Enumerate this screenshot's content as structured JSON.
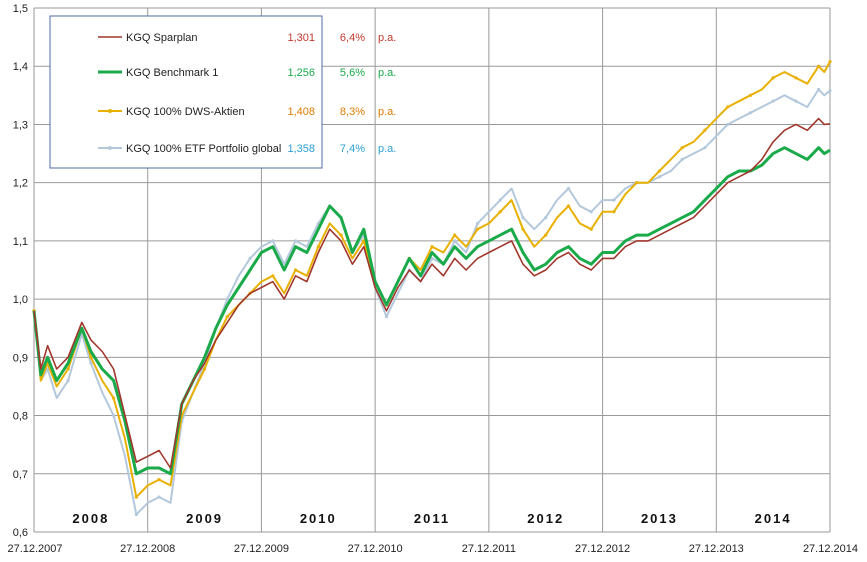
{
  "chart_data": {
    "type": "line",
    "title": "",
    "xlabel": "",
    "ylabel": "",
    "ylim": [
      0.6,
      1.5
    ],
    "y_ticks": [
      "0,6",
      "0,7",
      "0,8",
      "0,9",
      "1,0",
      "1,1",
      "1,2",
      "1,3",
      "1,4",
      "1,5"
    ],
    "x_ticks": [
      "27.12.2007",
      "27.12.2008",
      "27.12.2009",
      "27.12.2010",
      "27.12.2011",
      "27.12.2012",
      "27.12.2013",
      "27.12.2014"
    ],
    "year_labels": [
      "2008",
      "2009",
      "2010",
      "2011",
      "2012",
      "2013",
      "2014"
    ],
    "x": [
      0,
      0.06,
      0.12,
      0.2,
      0.3,
      0.42,
      0.5,
      0.6,
      0.7,
      0.8,
      0.9,
      1.0,
      1.1,
      1.2,
      1.3,
      1.4,
      1.5,
      1.6,
      1.7,
      1.8,
      1.9,
      2.0,
      2.1,
      2.2,
      2.3,
      2.4,
      2.5,
      2.6,
      2.7,
      2.8,
      2.9,
      3.0,
      3.1,
      3.2,
      3.3,
      3.4,
      3.5,
      3.6,
      3.7,
      3.8,
      3.9,
      4.0,
      4.1,
      4.2,
      4.3,
      4.4,
      4.5,
      4.6,
      4.7,
      4.8,
      4.9,
      5.0,
      5.1,
      5.2,
      5.3,
      5.4,
      5.5,
      5.6,
      5.7,
      5.8,
      5.9,
      6.0,
      6.1,
      6.2,
      6.3,
      6.4,
      6.5,
      6.6,
      6.7,
      6.8,
      6.9,
      6.95,
      7.0
    ],
    "series": [
      {
        "name": "KGQ Sparplan",
        "color": "#a0372d",
        "stroke_width": 1.6,
        "value_label": "1,301",
        "pa_label": "6,4%",
        "pa_unit": "p.a.",
        "value_color": "#c0392b",
        "pa_color": "#c0392b",
        "values": [
          0.98,
          0.88,
          0.92,
          0.88,
          0.9,
          0.96,
          0.93,
          0.91,
          0.88,
          0.8,
          0.72,
          0.73,
          0.74,
          0.71,
          0.82,
          0.86,
          0.89,
          0.93,
          0.96,
          0.99,
          1.01,
          1.02,
          1.03,
          1.0,
          1.04,
          1.03,
          1.08,
          1.12,
          1.1,
          1.06,
          1.09,
          1.02,
          0.98,
          1.02,
          1.05,
          1.03,
          1.06,
          1.04,
          1.07,
          1.05,
          1.07,
          1.08,
          1.09,
          1.1,
          1.06,
          1.04,
          1.05,
          1.07,
          1.08,
          1.06,
          1.05,
          1.07,
          1.07,
          1.09,
          1.1,
          1.1,
          1.11,
          1.12,
          1.13,
          1.14,
          1.16,
          1.18,
          1.2,
          1.21,
          1.22,
          1.24,
          1.27,
          1.29,
          1.3,
          1.29,
          1.31,
          1.3,
          1.301
        ]
      },
      {
        "name": "KGQ Benchmark 1",
        "color": "#1aaa4a",
        "stroke_width": 3,
        "value_label": "1,256",
        "pa_label": "5,6%",
        "pa_unit": "p.a.",
        "value_color": "#1aaa4a",
        "pa_color": "#1aaa4a",
        "values": [
          0.98,
          0.87,
          0.9,
          0.86,
          0.89,
          0.95,
          0.91,
          0.88,
          0.86,
          0.79,
          0.7,
          0.71,
          0.71,
          0.7,
          0.82,
          0.86,
          0.9,
          0.95,
          0.99,
          1.02,
          1.05,
          1.08,
          1.09,
          1.05,
          1.09,
          1.08,
          1.12,
          1.16,
          1.14,
          1.08,
          1.12,
          1.03,
          0.99,
          1.03,
          1.07,
          1.04,
          1.08,
          1.06,
          1.09,
          1.07,
          1.09,
          1.1,
          1.11,
          1.12,
          1.08,
          1.05,
          1.06,
          1.08,
          1.09,
          1.07,
          1.06,
          1.08,
          1.08,
          1.1,
          1.11,
          1.11,
          1.12,
          1.13,
          1.14,
          1.15,
          1.17,
          1.19,
          1.21,
          1.22,
          1.22,
          1.23,
          1.25,
          1.26,
          1.25,
          1.24,
          1.26,
          1.25,
          1.256
        ]
      },
      {
        "name": "KGQ 100% DWS-Aktien",
        "color": "#e8b000",
        "stroke_width": 2,
        "value_label": "1,408",
        "pa_label": "8,3%",
        "pa_unit": "p.a.",
        "value_color": "#e07b00",
        "pa_color": "#e07b00",
        "values": [
          0.98,
          0.86,
          0.89,
          0.85,
          0.88,
          0.95,
          0.9,
          0.86,
          0.83,
          0.76,
          0.66,
          0.68,
          0.69,
          0.68,
          0.8,
          0.84,
          0.88,
          0.93,
          0.97,
          0.99,
          1.01,
          1.03,
          1.04,
          1.01,
          1.05,
          1.04,
          1.09,
          1.13,
          1.11,
          1.07,
          1.1,
          1.03,
          0.99,
          1.03,
          1.07,
          1.05,
          1.09,
          1.08,
          1.11,
          1.09,
          1.12,
          1.13,
          1.15,
          1.17,
          1.12,
          1.09,
          1.11,
          1.14,
          1.16,
          1.13,
          1.12,
          1.15,
          1.15,
          1.18,
          1.2,
          1.2,
          1.22,
          1.24,
          1.26,
          1.27,
          1.29,
          1.31,
          1.33,
          1.34,
          1.35,
          1.36,
          1.38,
          1.39,
          1.38,
          1.37,
          1.4,
          1.39,
          1.408
        ]
      },
      {
        "name": "KGQ 100% ETF Portfolio global",
        "color": "#b4c8dc",
        "stroke_width": 2,
        "value_label": "1,358",
        "pa_label": "7,4%",
        "pa_unit": "p.a.",
        "value_color": "#2a9fd6",
        "pa_color": "#2a9fd6",
        "values": [
          0.98,
          0.86,
          0.88,
          0.83,
          0.86,
          0.94,
          0.89,
          0.84,
          0.8,
          0.73,
          0.63,
          0.65,
          0.66,
          0.65,
          0.79,
          0.84,
          0.89,
          0.95,
          1.0,
          1.04,
          1.07,
          1.09,
          1.1,
          1.06,
          1.1,
          1.09,
          1.13,
          1.16,
          1.14,
          1.08,
          1.11,
          1.02,
          0.97,
          1.01,
          1.05,
          1.03,
          1.07,
          1.06,
          1.1,
          1.08,
          1.13,
          1.15,
          1.17,
          1.19,
          1.14,
          1.12,
          1.14,
          1.17,
          1.19,
          1.16,
          1.15,
          1.17,
          1.17,
          1.19,
          1.2,
          1.2,
          1.21,
          1.22,
          1.24,
          1.25,
          1.26,
          1.28,
          1.3,
          1.31,
          1.32,
          1.33,
          1.34,
          1.35,
          1.34,
          1.33,
          1.36,
          1.35,
          1.358
        ]
      }
    ],
    "legend_position": "top-left",
    "grid": true
  }
}
